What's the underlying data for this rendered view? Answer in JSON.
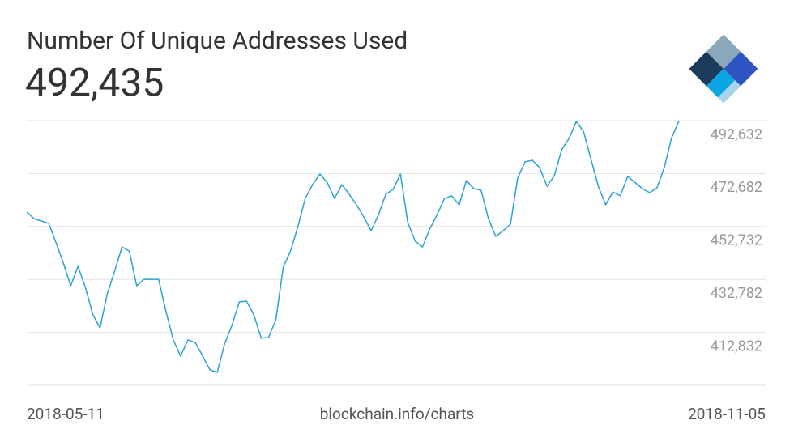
{
  "chart_data": {
    "type": "line",
    "title": "Number Of Unique Addresses Used",
    "subtitle": "492,435",
    "source": "blockchain.info/charts",
    "categories": [
      "2018-05-11",
      null,
      null,
      null,
      null,
      null,
      null,
      null,
      null,
      null,
      null,
      null,
      null,
      null,
      null,
      null,
      null,
      null,
      null,
      null,
      null,
      null,
      null,
      null,
      null,
      null,
      null,
      null,
      null,
      null,
      null,
      null,
      null,
      null,
      null,
      null,
      null,
      null,
      null,
      null,
      null,
      null,
      null,
      null,
      null,
      null,
      null,
      null,
      null,
      null,
      null,
      null,
      null,
      null,
      null,
      null,
      null,
      null,
      null,
      null,
      null,
      null,
      null,
      null,
      null,
      null,
      null,
      null,
      null,
      null,
      null,
      null,
      null,
      null,
      null,
      null,
      null,
      null,
      null,
      null,
      null,
      null,
      null,
      null,
      null,
      null,
      null,
      null,
      null,
      "2018-11-05"
    ],
    "series": [
      {
        "name": "Unique Addresses",
        "color": "#2aa3d3",
        "values": [
          458200,
          455700,
          454800,
          453900,
          446600,
          438900,
          430400,
          437700,
          429800,
          419700,
          414500,
          427400,
          435900,
          445000,
          443500,
          430400,
          432800,
          432800,
          432800,
          420600,
          410000,
          403900,
          410000,
          409000,
          403900,
          398700,
          397800,
          408400,
          415500,
          424300,
          424600,
          419400,
          410600,
          410900,
          417600,
          437400,
          443500,
          452700,
          463300,
          468500,
          472500,
          469400,
          463300,
          468500,
          464900,
          460900,
          456300,
          451100,
          457200,
          464900,
          466700,
          472500,
          454200,
          447200,
          445000,
          451800,
          457200,
          463300,
          464300,
          460900,
          470100,
          467000,
          466400,
          455700,
          449000,
          451100,
          453600,
          471000,
          477100,
          477700,
          474900,
          467900,
          471900,
          481700,
          485900,
          492300,
          488400,
          478000,
          467900,
          460900,
          465800,
          464300,
          471600,
          469400,
          467000,
          465500,
          467300,
          474900,
          486200,
          492435
        ]
      }
    ],
    "ylim": [
      392882,
      492632
    ],
    "yticks": [
      {
        "value": 412832,
        "label": "412,832"
      },
      {
        "value": 432782,
        "label": "432,782"
      },
      {
        "value": 452732,
        "label": "452,732"
      },
      {
        "value": 472682,
        "label": "472,682"
      },
      {
        "value": 492632,
        "label": "492,632"
      }
    ],
    "grid": true
  }
}
